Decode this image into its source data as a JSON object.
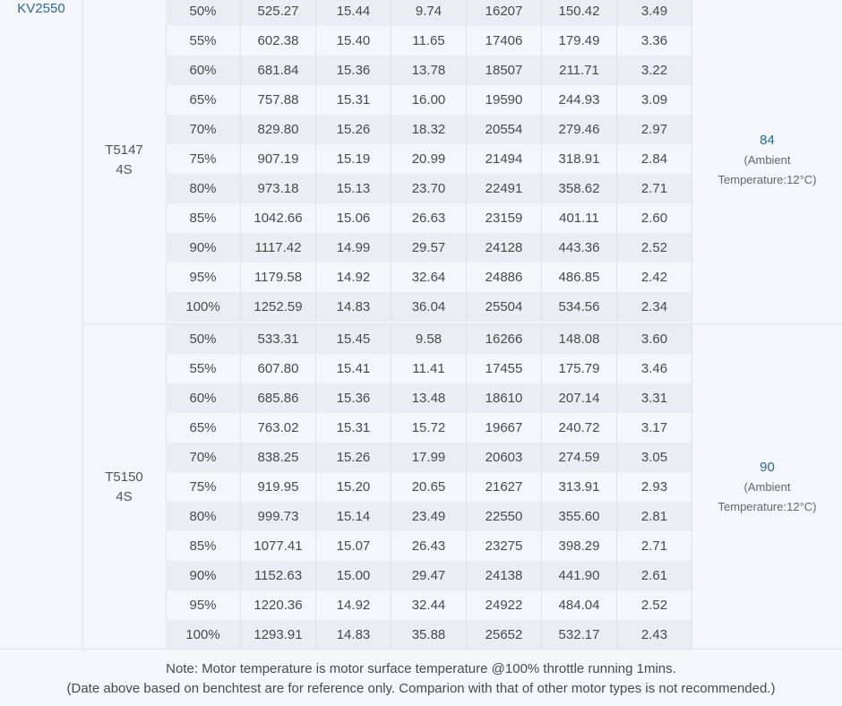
{
  "motor": "KV2550",
  "groups": [
    {
      "propeller": "T5147",
      "battery": "4S",
      "temperature": "84",
      "ambient_line1": "(Ambient",
      "ambient_line2": "Temperature:12°C)",
      "rows": [
        [
          "50%",
          "525.27",
          "15.44",
          "9.74",
          "16207",
          "150.42",
          "3.49"
        ],
        [
          "55%",
          "602.38",
          "15.40",
          "11.65",
          "17406",
          "179.49",
          "3.36"
        ],
        [
          "60%",
          "681.84",
          "15.36",
          "13.78",
          "18507",
          "211.71",
          "3.22"
        ],
        [
          "65%",
          "757.88",
          "15.31",
          "16.00",
          "19590",
          "244.93",
          "3.09"
        ],
        [
          "70%",
          "829.80",
          "15.26",
          "18.32",
          "20554",
          "279.46",
          "2.97"
        ],
        [
          "75%",
          "907.19",
          "15.19",
          "20.99",
          "21494",
          "318.91",
          "2.84"
        ],
        [
          "80%",
          "973.18",
          "15.13",
          "23.70",
          "22491",
          "358.62",
          "2.71"
        ],
        [
          "85%",
          "1042.66",
          "15.06",
          "26.63",
          "23159",
          "401.11",
          "2.60"
        ],
        [
          "90%",
          "1117.42",
          "14.99",
          "29.57",
          "24128",
          "443.36",
          "2.52"
        ],
        [
          "95%",
          "1179.58",
          "14.92",
          "32.64",
          "24886",
          "486.85",
          "2.42"
        ],
        [
          "100%",
          "1252.59",
          "14.83",
          "36.04",
          "25504",
          "534.56",
          "2.34"
        ]
      ]
    },
    {
      "propeller": "T5150",
      "battery": "4S",
      "temperature": "90",
      "ambient_line1": "(Ambient",
      "ambient_line2": "Temperature:12°C)",
      "rows": [
        [
          "50%",
          "533.31",
          "15.45",
          "9.58",
          "16266",
          "148.08",
          "3.60"
        ],
        [
          "55%",
          "607.80",
          "15.41",
          "11.41",
          "17455",
          "175.79",
          "3.46"
        ],
        [
          "60%",
          "685.86",
          "15.36",
          "13.48",
          "18610",
          "207.14",
          "3.31"
        ],
        [
          "65%",
          "763.02",
          "15.31",
          "15.72",
          "19667",
          "240.72",
          "3.17"
        ],
        [
          "70%",
          "838.25",
          "15.26",
          "17.99",
          "20603",
          "274.59",
          "3.05"
        ],
        [
          "75%",
          "919.95",
          "15.20",
          "20.65",
          "21627",
          "313.91",
          "2.93"
        ],
        [
          "80%",
          "999.73",
          "15.14",
          "23.49",
          "22550",
          "355.60",
          "2.81"
        ],
        [
          "85%",
          "1077.41",
          "15.07",
          "26.43",
          "23275",
          "398.29",
          "2.71"
        ],
        [
          "90%",
          "1152.63",
          "15.00",
          "29.47",
          "24138",
          "441.90",
          "2.61"
        ],
        [
          "95%",
          "1220.36",
          "14.92",
          "32.44",
          "24922",
          "484.04",
          "2.52"
        ],
        [
          "100%",
          "1293.91",
          "14.83",
          "35.88",
          "25652",
          "532.17",
          "2.43"
        ]
      ]
    }
  ],
  "footer": {
    "note1": "Note: Motor temperature is motor surface temperature @100% throttle running 1mins.",
    "note2": "(Date above based on benchtest are for reference only. Comparion with that of other motor types is not recommended.)"
  }
}
